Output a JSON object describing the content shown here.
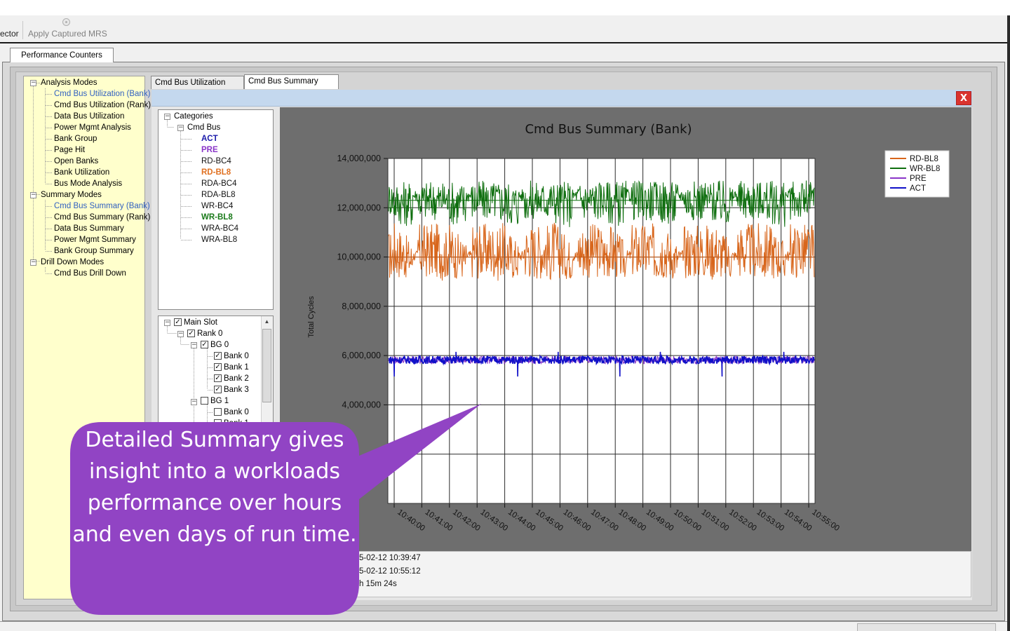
{
  "toolbar": {
    "fragment_label": "ector",
    "apply_mrs_label": "Apply Captured MRS"
  },
  "outer_tab": "Performance Counters",
  "nav_tree": {
    "groups": [
      {
        "label": "Analysis Modes",
        "items": [
          "Cmd Bus Utilization (Bank)",
          "Cmd Bus Utilization (Rank)",
          "Data Bus Utilization",
          "Power Mgmt Analysis",
          "Bank Group",
          "Page Hit",
          "Open Banks",
          "Bank Utilization",
          "Bus Mode Analysis"
        ]
      },
      {
        "label": "Summary Modes",
        "items": [
          "Cmd Bus Summary (Bank)",
          "Cmd Bus Summary (Rank)",
          "Data Bus Summary",
          "Power Mgmt Summary",
          "Bank Group Summary"
        ]
      },
      {
        "label": "Drill Down Modes",
        "items": [
          "Cmd Bus Drill Down"
        ]
      }
    ],
    "highlighted": [
      "Cmd Bus Utilization (Bank)",
      "Cmd Bus Summary (Bank)"
    ]
  },
  "inner_tabs": [
    "Cmd Bus Utilization (Bank)",
    "Cmd Bus Summary (Bank)"
  ],
  "close_label": "X",
  "categories": {
    "root": "Categories",
    "group": "Cmd Bus",
    "items": [
      {
        "label": "ACT",
        "color": "#1a1aaa",
        "bold": true
      },
      {
        "label": "PRE",
        "color": "#8a35c8",
        "bold": true
      },
      {
        "label": "RD-BC4",
        "color": "#111111",
        "bold": false
      },
      {
        "label": "RD-BL8",
        "color": "#e07020",
        "bold": true
      },
      {
        "label": "RDA-BC4",
        "color": "#111111",
        "bold": false
      },
      {
        "label": "RDA-BL8",
        "color": "#111111",
        "bold": false
      },
      {
        "label": "WR-BC4",
        "color": "#111111",
        "bold": false
      },
      {
        "label": "WR-BL8",
        "color": "#1a7a1a",
        "bold": true
      },
      {
        "label": "WRA-BC4",
        "color": "#111111",
        "bold": false
      },
      {
        "label": "WRA-BL8",
        "color": "#111111",
        "bold": false
      }
    ]
  },
  "slot_tree": {
    "main_slot": "Main Slot",
    "rank": "Rank 0",
    "bg0": "BG 0",
    "bg0_banks": [
      "Bank 0",
      "Bank 1",
      "Bank 2",
      "Bank 3"
    ],
    "bg1": "BG 1",
    "bg1_banks": [
      "Bank 0",
      "Bank 1"
    ]
  },
  "chart_data": {
    "type": "line",
    "title": "Cmd Bus Summary (Bank)",
    "xlabel": "",
    "ylabel": "Total Cycles",
    "ylim": [
      0,
      14000000
    ],
    "yticks": [
      "14,000,000",
      "12,000,000",
      "10,000,000",
      "8,000,000",
      "6,000,000",
      "4,000,000"
    ],
    "yticks_values": [
      14000000,
      12000000,
      10000000,
      8000000,
      6000000,
      4000000
    ],
    "xticks": [
      "10:40:00",
      "10:41:00",
      "10:42:00",
      "10:43:00",
      "10:44:00",
      "10:45:00",
      "10:46:00",
      "10:47:00",
      "10:48:00",
      "10:49:00",
      "10:50:00",
      "10:51:00",
      "10:52:00",
      "10:53:00",
      "10:54:00",
      "10:55:00"
    ],
    "x_start": "10:39:47",
    "x_end": "10:55:12",
    "grid": true,
    "legend_position": "top-right",
    "series": [
      {
        "name": "RD-BL8",
        "color": "#d8661c",
        "min": 8900000,
        "max": 11700000,
        "typical": 10000000
      },
      {
        "name": "WR-BL8",
        "color": "#0e6e0e",
        "min": 11000000,
        "max": 13200000,
        "typical": 12400000
      },
      {
        "name": "PRE",
        "color": "#8a35c8",
        "min": 5700000,
        "max": 6100000,
        "typical": 5800000
      },
      {
        "name": "ACT",
        "color": "#1010c8",
        "min": 5100000,
        "max": 6150000,
        "typical": 5800000
      }
    ],
    "phases_per_cycle": 8
  },
  "status": {
    "start_time": "5-02-12 10:39:47",
    "end_time": "5-02-12 10:55:12",
    "duration": "h 15m 24s"
  },
  "callout": {
    "text": "Detailed Summary gives insight into a workloads performance over hours and even days of run time.",
    "color": "#9144c4"
  }
}
